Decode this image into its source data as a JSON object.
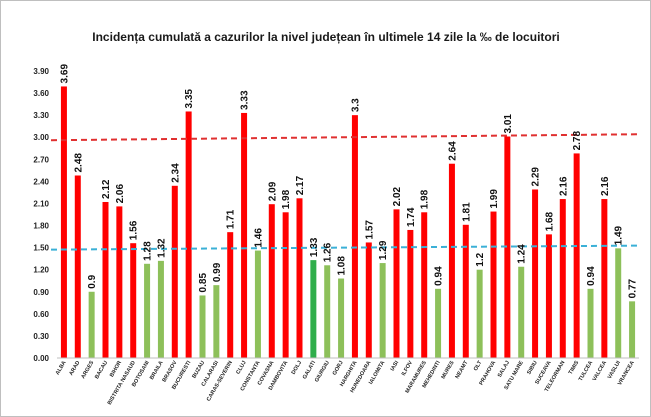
{
  "colors": {
    "bar_high": "#ff0000",
    "bar_low": "#8dc05a",
    "bar_dark": "#2fae4b",
    "ref_red": "#e03030",
    "ref_blue": "#3bb0d6"
  },
  "chart_data": {
    "type": "bar",
    "title": "Incidența cumulată a cazurilor la nivel județean în ultimele 14 zile la ‰ de locuitori",
    "xlabel": "",
    "ylabel": "",
    "ylim": [
      0,
      3.9
    ],
    "yticks": [
      "0.00",
      "0.30",
      "0.60",
      "0.90",
      "1.20",
      "1.50",
      "1.80",
      "2.10",
      "2.40",
      "2.70",
      "3.00",
      "3.30",
      "3.60",
      "3.90"
    ],
    "reference_lines": [
      {
        "value": 3.0,
        "color": "red",
        "style": "dashed"
      },
      {
        "value": 1.5,
        "color": "blue",
        "style": "dashed"
      }
    ],
    "grid": false,
    "legend": "none",
    "categories": [
      "ALBA",
      "ARAD",
      "ARGES",
      "BACAU",
      "BIHOR",
      "BISTRITA NASAUD",
      "BOTOSANI",
      "BRAILA",
      "BRASOV",
      "BUCURESTI",
      "BUZAU",
      "CALARASI",
      "CARAS-SEVERIN",
      "CLUJ",
      "CONSTANTA",
      "COVASNA",
      "DAMBOVITA",
      "DOLJ",
      "GALATI",
      "GIURGIU",
      "GORJ",
      "HARGHITA",
      "HUNEDOARA",
      "IALOMITA",
      "IASI",
      "ILFOV",
      "MARAMURES",
      "MEHEDINTI",
      "MURES",
      "NEAMT",
      "OLT",
      "PRAHOVA",
      "SALAJ",
      "SATU MARE",
      "SIBIU",
      "SUCEAVA",
      "TELEORMAN",
      "TIMIS",
      "TULCEA",
      "VALCEA",
      "VASLUI",
      "VRANCEA"
    ],
    "values": [
      3.69,
      2.48,
      0.9,
      2.12,
      2.06,
      1.56,
      1.28,
      1.32,
      2.34,
      3.35,
      0.85,
      0.99,
      1.71,
      3.33,
      1.46,
      2.09,
      1.98,
      2.17,
      1.33,
      1.26,
      1.08,
      3.3,
      1.57,
      1.29,
      2.02,
      1.74,
      1.98,
      0.94,
      2.64,
      1.81,
      1.2,
      1.99,
      3.01,
      1.24,
      2.29,
      1.68,
      2.16,
      2.78,
      0.94,
      2.16,
      1.49,
      0.77
    ],
    "value_labels": [
      "3.69",
      "2.48",
      "0.9",
      "2.12",
      "2.06",
      "1.56",
      "1.28",
      "1.32",
      "2.34",
      "3.35",
      "0.85",
      "0.99",
      "1.71",
      "3.33",
      "1.46",
      "2.09",
      "1.98",
      "2.17",
      "1.33",
      "1.26",
      "1.08",
      "3.3",
      "1.57",
      "1.29",
      "2.02",
      "1.74",
      "1.98",
      "0.94",
      "2.64",
      "1.81",
      "1.2",
      "1.99",
      "3.01",
      "1.24",
      "2.29",
      "1.68",
      "2.16",
      "2.78",
      "0.94",
      "2.16",
      "1.49",
      "0.77"
    ],
    "highlighted_category": "GALATI"
  }
}
